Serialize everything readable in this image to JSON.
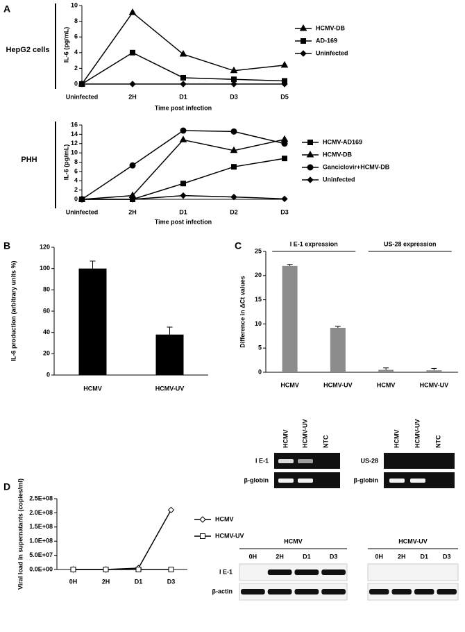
{
  "chart_data": [
    {
      "type": "line",
      "panel": "A",
      "side_label": "HepG2 cells",
      "y_label": "IL-6 (pg/mL)",
      "x_label": "Time post infection",
      "categories": [
        "Uninfected",
        "2H",
        "D1",
        "D3",
        "D5"
      ],
      "ylim": [
        0,
        10
      ],
      "yticks": [
        0,
        2,
        4,
        6,
        8,
        10
      ],
      "series": [
        {
          "name": "HCMV-DB",
          "color": "#000000",
          "marker": "triangle",
          "marker_filled": true,
          "values": [
            0,
            9.1,
            3.8,
            1.7,
            2.4
          ]
        },
        {
          "name": "AD-169",
          "color": "#000000",
          "marker": "square",
          "marker_filled": true,
          "values": [
            0,
            4,
            0.8,
            0.6,
            0.4
          ]
        },
        {
          "name": "Uninfected",
          "color": "#000000",
          "marker": "diamond",
          "marker_filled": true,
          "values": [
            0,
            0,
            0,
            0,
            0
          ]
        }
      ]
    },
    {
      "type": "line",
      "side_label": "PHH",
      "y_label": "IL-6 (pg/mL)",
      "x_label": "Time post infection",
      "categories": [
        "Uninfected",
        "2H",
        "D1",
        "D2",
        "D3"
      ],
      "ylim": [
        0,
        16
      ],
      "yticks": [
        0,
        2,
        4,
        6,
        8,
        10,
        12,
        14,
        16
      ],
      "series": [
        {
          "name": "HCMV-AD169",
          "color": "#000000",
          "marker": "square",
          "marker_filled": true,
          "values": [
            0,
            0,
            3.4,
            7,
            8.8
          ]
        },
        {
          "name": "HCMV-DB",
          "color": "#000000",
          "marker": "triangle",
          "marker_filled": true,
          "values": [
            0,
            0.8,
            12.8,
            10.5,
            12.9
          ]
        },
        {
          "name": "Ganciclovir+HCMV-DB",
          "color": "#000000",
          "marker": "circle",
          "marker_filled": true,
          "values": [
            0,
            7.3,
            14.8,
            14.6,
            12
          ]
        },
        {
          "name": "Uninfected",
          "color": "#000000",
          "marker": "diamond",
          "marker_filled": true,
          "values": [
            0,
            0,
            0.8,
            0.5,
            0.1
          ]
        }
      ]
    },
    {
      "type": "bar",
      "panel": "B",
      "y_label": "IL-6 production (arbitrary units %)",
      "color": "#000000",
      "categories": [
        "HCMV",
        "HCMV-UV"
      ],
      "values": [
        100,
        38
      ],
      "errors": [
        7,
        7
      ],
      "ylim": [
        0,
        120
      ],
      "yticks": [
        0,
        20,
        40,
        60,
        80,
        100,
        120
      ]
    },
    {
      "type": "bar",
      "panel": "C",
      "y_label": "Difference in ΔCt values",
      "color": "#8c8c8c",
      "group_labels": [
        "I E-1 expression",
        "US-28 expression"
      ],
      "categories": [
        "HCMV",
        "HCMV-UV",
        "HCMV",
        "HCMV-UV"
      ],
      "values": [
        22,
        9.2,
        0.5,
        0.4
      ],
      "errors": [
        0.3,
        0.3,
        0.4,
        0.4
      ],
      "ylim": [
        0,
        25
      ],
      "yticks": [
        0,
        5,
        10,
        15,
        20,
        25
      ]
    },
    {
      "type": "line",
      "panel": "D",
      "y_label": "Viral load in supernatants (copies/ml)",
      "categories": [
        "0H",
        "2H",
        "D1",
        "D3"
      ],
      "ylim": [
        0,
        250000000
      ],
      "yticks": [
        {
          "value": 0,
          "label": "0.0E+00"
        },
        {
          "value": 50000000,
          "label": "5.0E+07"
        },
        {
          "value": 100000000,
          "label": "1.0E+08"
        },
        {
          "value": 150000000,
          "label": "1.5E+08"
        },
        {
          "value": 200000000,
          "label": "2.0E+08"
        },
        {
          "value": 250000000,
          "label": "2.5E+08"
        }
      ],
      "series": [
        {
          "name": "HCMV",
          "color": "#000000",
          "marker": "diamond",
          "marker_filled": false,
          "values": [
            0,
            0,
            5000000,
            210000000
          ]
        },
        {
          "name": "HCMV-UV",
          "color": "#000000",
          "marker": "square",
          "marker_filled": false,
          "values": [
            0,
            0,
            0,
            0
          ]
        }
      ]
    }
  ],
  "gels": {
    "C": {
      "lanes": [
        "HCMV",
        "HCMV-UV",
        "NTC"
      ],
      "left_rows": [
        "I E-1",
        "β-globin"
      ],
      "right_rows": [
        "US-28",
        "β-globin"
      ]
    },
    "D": {
      "groups": [
        "HCMV",
        "HCMV-UV"
      ],
      "lanes": [
        "0H",
        "2H",
        "D1",
        "D3"
      ],
      "rows": [
        "I E-1",
        "β-actin"
      ]
    }
  }
}
